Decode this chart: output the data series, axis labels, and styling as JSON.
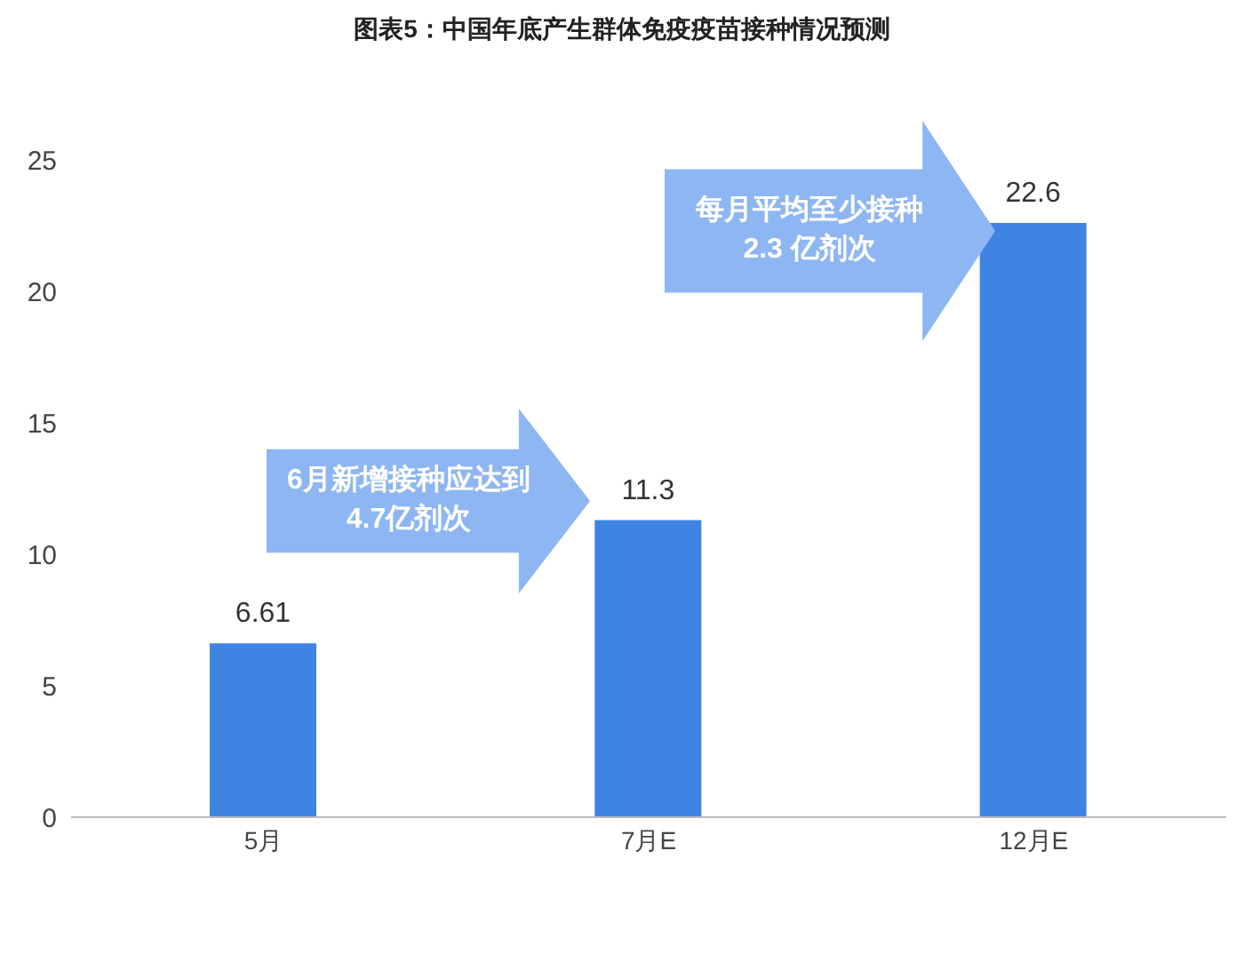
{
  "chart_data": {
    "type": "bar",
    "title": "图表5：中国年底产生群体免疫疫苗接种情况预测",
    "categories": [
      "5月",
      "7月E",
      "12月E"
    ],
    "values": [
      6.61,
      11.3,
      22.6
    ],
    "color": "#3f83e3",
    "ylim": [
      0,
      25
    ],
    "yticks": [
      0,
      5,
      10,
      15,
      20,
      25
    ],
    "data_labels": true,
    "annotations": [
      "6月新增接种应达到4.7亿剂次",
      "每月平均至少接种 2.3 亿剂次"
    ]
  }
}
